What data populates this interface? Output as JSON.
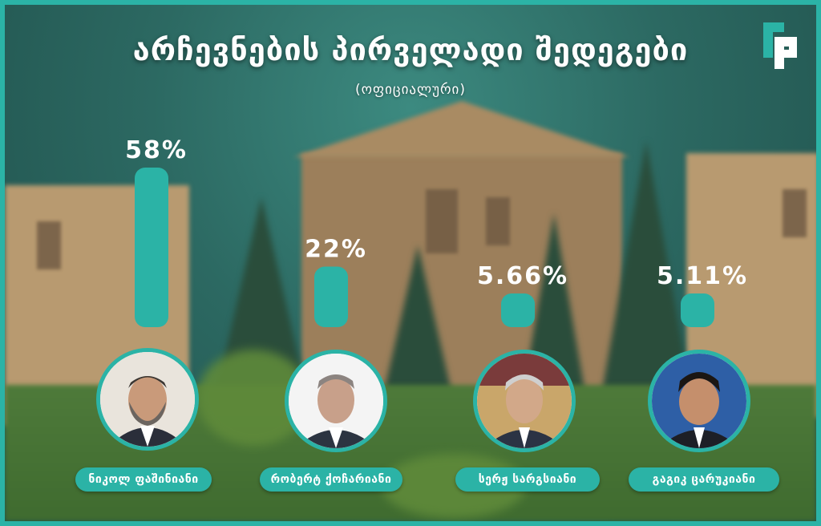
{
  "header": {
    "title": "არჩევნების პირველადი შედეგები",
    "subtitle": "(ოფიციალური)",
    "logo_text": "RP"
  },
  "colors": {
    "accent": "#2bb3a6",
    "text": "#ffffff"
  },
  "chart_data": {
    "type": "bar",
    "title": "არჩევნების პირველადი შედეგები",
    "subtitle": "(ოფიციალური)",
    "categories": [
      "ნიკოლ ფაშინიანი",
      "რობერტ ქოჩარიანი",
      "სერჟ სარგსიანი",
      "გაგიკ ცარუკიანი"
    ],
    "values": [
      58,
      22,
      5.66,
      5.11
    ],
    "value_labels": [
      "58%",
      "22%",
      "5.66%",
      "5.11%"
    ],
    "unit": "%",
    "ylim": [
      0,
      58
    ],
    "grid": false,
    "legend": "none"
  }
}
